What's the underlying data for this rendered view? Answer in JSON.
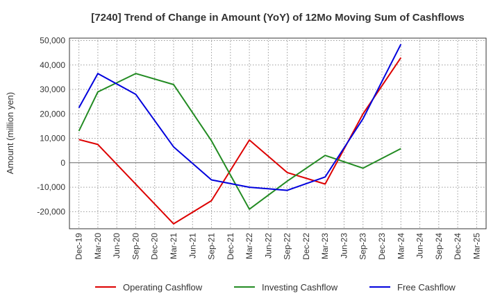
{
  "chart_data": {
    "type": "line",
    "title": "[7240]  Trend of Change in Amount (YoY) of 12Mo Moving Sum of Cashflows",
    "xlabel": "",
    "ylabel": "Amount (million yen)",
    "ylim": [
      -27000,
      51000
    ],
    "yticks": [
      -20000,
      -10000,
      0,
      10000,
      20000,
      30000,
      40000,
      50000
    ],
    "ytick_labels": [
      "-20,000",
      "-10,000",
      "0",
      "10,000",
      "20,000",
      "30,000",
      "40,000",
      "50,000"
    ],
    "categories": [
      "Dec-19",
      "Mar-20",
      "Jun-20",
      "Sep-20",
      "Dec-20",
      "Mar-21",
      "Jun-21",
      "Sep-21",
      "Dec-21",
      "Mar-22",
      "Jun-22",
      "Sep-22",
      "Dec-22",
      "Mar-23",
      "Jun-23",
      "Sep-23",
      "Dec-23",
      "Mar-24",
      "Jun-24",
      "Sep-24",
      "Dec-24",
      "Mar-25"
    ],
    "grid": true,
    "legend_position": "bottom",
    "series": [
      {
        "name": "Operating Cashflow",
        "color": "#dd0000",
        "values": [
          9500,
          7500,
          null,
          null,
          null,
          -25000,
          null,
          -15500,
          null,
          9300,
          null,
          -4000,
          null,
          -8700,
          null,
          20000,
          null,
          43000,
          null,
          null,
          null,
          null
        ]
      },
      {
        "name": "Investing Cashflow",
        "color": "#228b22",
        "values": [
          13000,
          29000,
          null,
          36500,
          null,
          32000,
          null,
          9000,
          null,
          -19000,
          null,
          -7500,
          null,
          3000,
          null,
          -2200,
          null,
          5800,
          null,
          null,
          null,
          null
        ]
      },
      {
        "name": "Free Cashflow",
        "color": "#0000dd",
        "values": [
          22500,
          36500,
          null,
          28000,
          null,
          6500,
          null,
          -7000,
          null,
          -10000,
          null,
          -11300,
          null,
          -5800,
          null,
          18000,
          null,
          48500,
          null,
          null,
          null,
          null
        ]
      }
    ]
  }
}
